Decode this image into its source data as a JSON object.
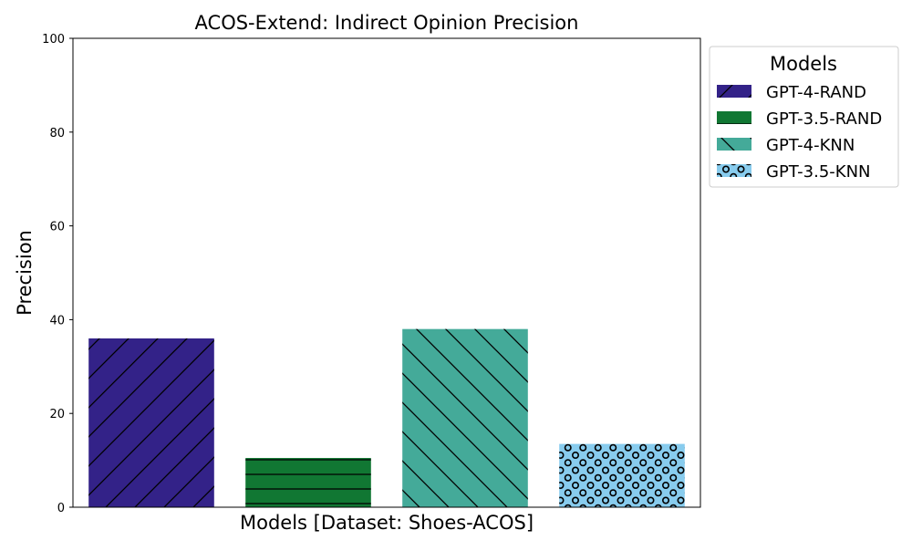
{
  "chart_data": {
    "type": "bar",
    "title": "ACOS-Extend: Indirect Opinion Precision",
    "xlabel": "Models [Dataset: Shoes-ACOS]",
    "ylabel": "Precision",
    "ylim": [
      0,
      100
    ],
    "yticks": [
      0,
      20,
      40,
      60,
      80,
      100
    ],
    "grid": false,
    "legend_title": "Models",
    "legend_position": "outside-top-right",
    "series": [
      {
        "name": "GPT-4-RAND",
        "value": 36,
        "color": "#332288",
        "pattern": "forward-diagonal"
      },
      {
        "name": "GPT-3.5-RAND",
        "value": 10.5,
        "color": "#117733",
        "pattern": "horizontal"
      },
      {
        "name": "GPT-4-KNN",
        "value": 38,
        "color": "#44AA99",
        "pattern": "back-diagonal"
      },
      {
        "name": "GPT-3.5-KNN",
        "value": 13.5,
        "color": "#88CCEE",
        "pattern": "circles"
      }
    ]
  }
}
